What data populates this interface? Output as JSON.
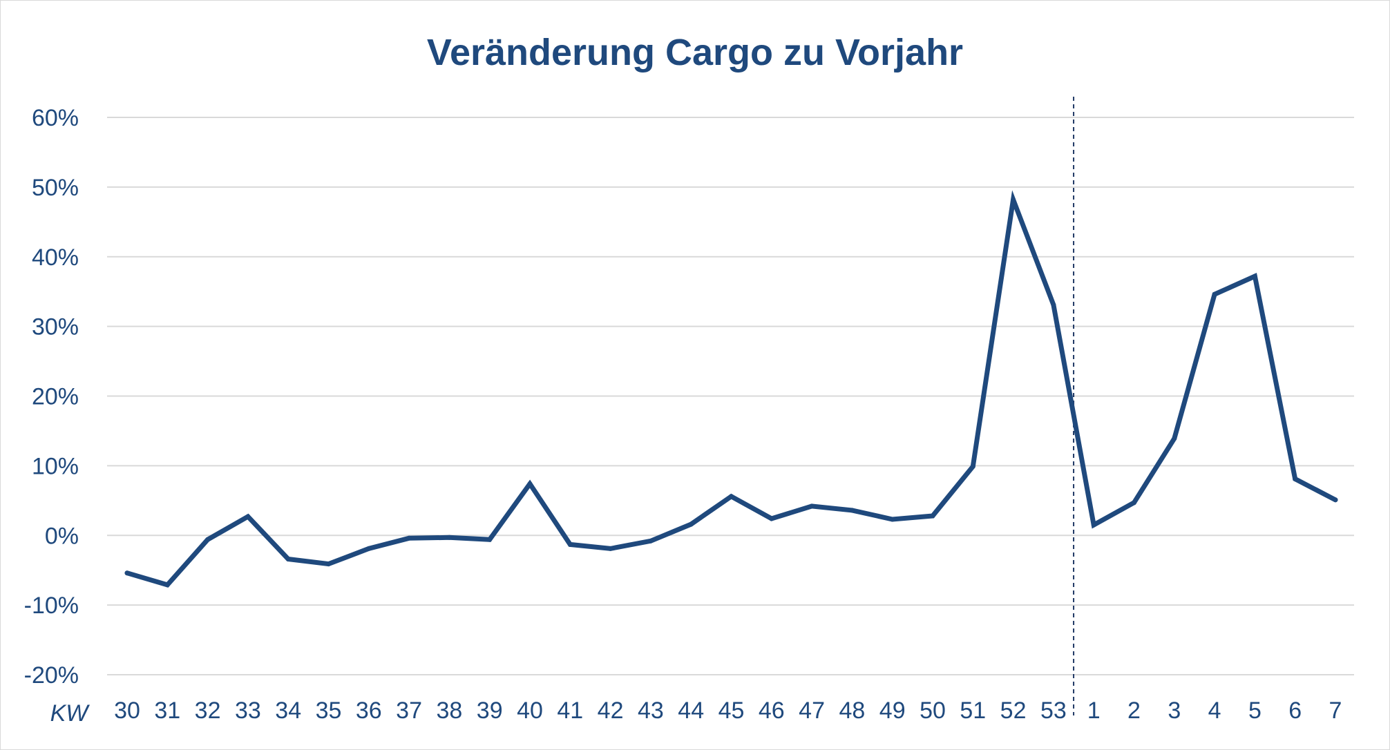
{
  "chart_data": {
    "type": "line",
    "title": "Veränderung Cargo zu Vorjahr",
    "xlabel": "KW",
    "ylabel": "",
    "ylim": [
      -0.2,
      0.6
    ],
    "yticks": [
      -0.2,
      -0.1,
      0,
      0.1,
      0.2,
      0.3,
      0.4,
      0.5,
      0.6
    ],
    "ytick_labels": [
      "-20%",
      "-10%",
      "0%",
      "10%",
      "20%",
      "30%",
      "40%",
      "50%",
      "60%"
    ],
    "grid": true,
    "legend": "none",
    "categories": [
      "30",
      "31",
      "32",
      "33",
      "34",
      "35",
      "36",
      "37",
      "38",
      "39",
      "40",
      "41",
      "42",
      "43",
      "44",
      "45",
      "46",
      "47",
      "48",
      "49",
      "50",
      "51",
      "52",
      "53",
      "1",
      "2",
      "3",
      "4",
      "5",
      "6",
      "7"
    ],
    "series": [
      {
        "values": [
          -0.054,
          -0.071,
          -0.006,
          0.027,
          -0.034,
          -0.041,
          -0.019,
          -0.004,
          -0.003,
          -0.006,
          0.074,
          -0.013,
          -0.019,
          -0.008,
          0.016,
          0.056,
          0.024,
          0.042,
          0.036,
          0.023,
          0.028,
          0.099,
          0.482,
          0.331,
          0.015,
          0.047,
          0.139,
          0.346,
          0.372,
          0.081,
          0.051
        ],
        "color": "#1f497d"
      }
    ],
    "year_separator_between": [
      "53",
      "1"
    ],
    "colors": {
      "line": "#1f497d",
      "text": "#1f497d",
      "grid": "#d9d9d9",
      "separator": "#1f3864"
    }
  }
}
